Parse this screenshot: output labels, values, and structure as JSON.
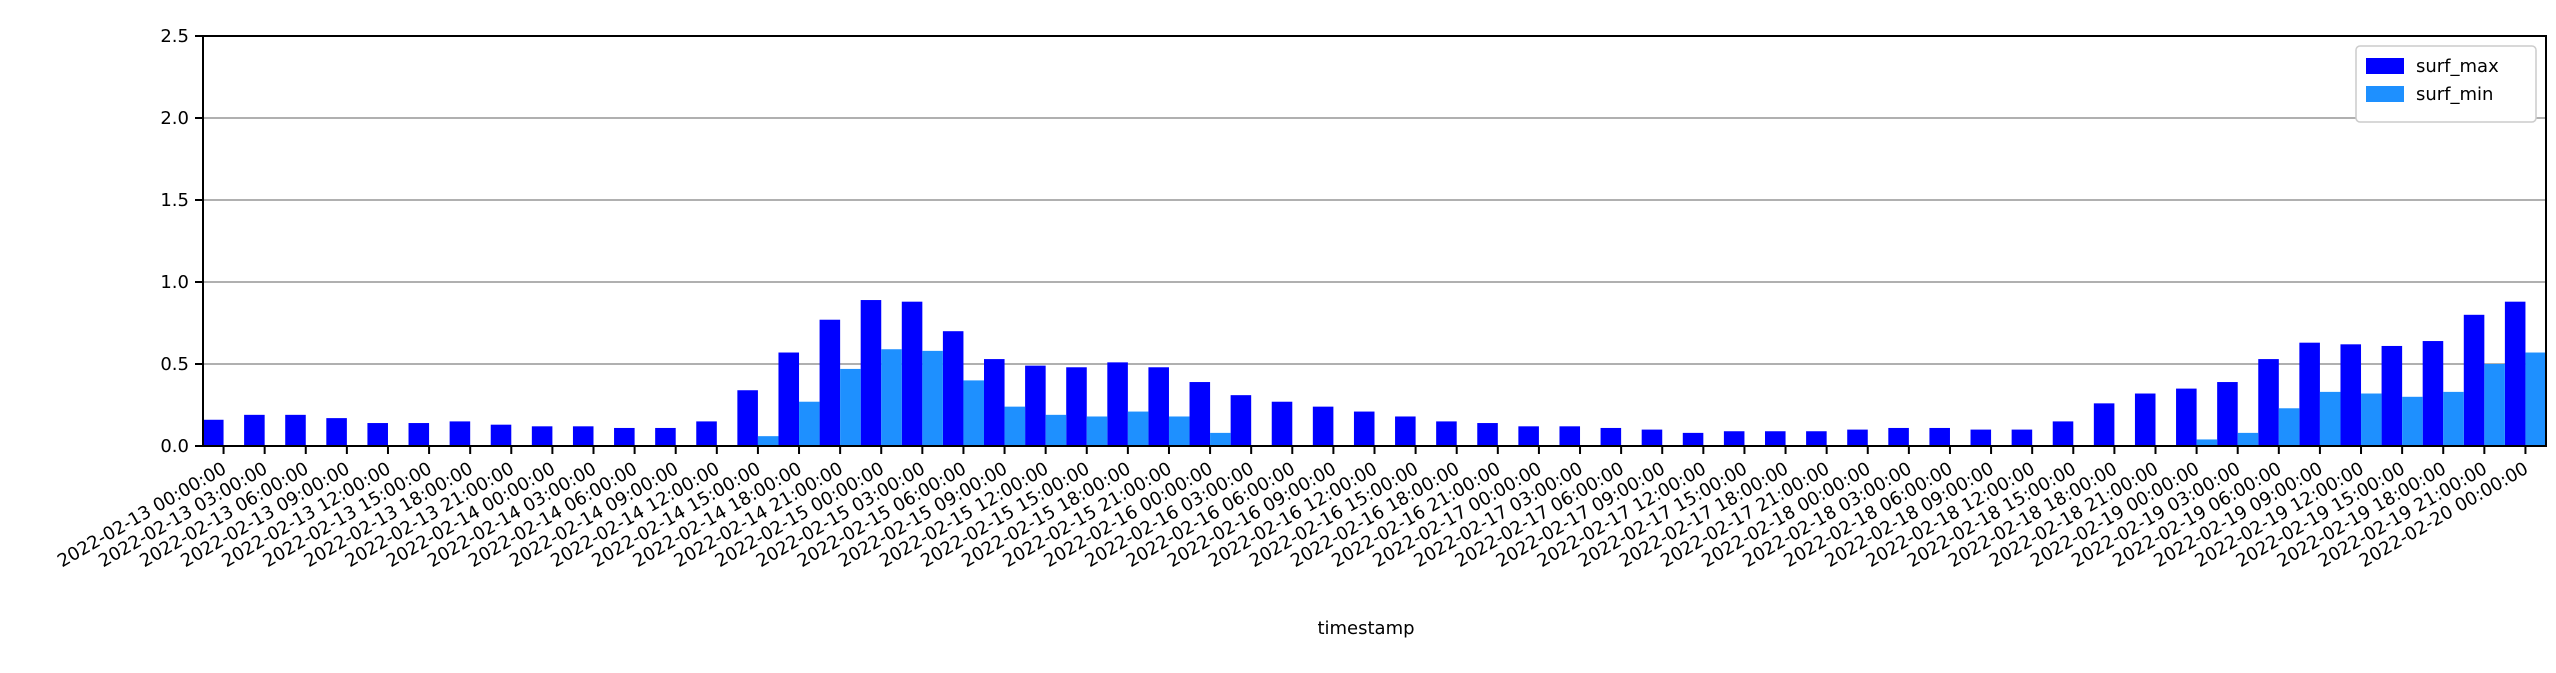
{
  "chart_data": {
    "type": "bar",
    "title": "",
    "xlabel": "timestamp",
    "ylabel": "",
    "ylim": [
      0,
      2.5
    ],
    "yticks": [
      "0.0",
      "0.5",
      "1.0",
      "1.5",
      "2.0",
      "2.5"
    ],
    "grid": "horizontal",
    "legend_position": "top-right",
    "categories": [
      "2022-02-13 00:00:00",
      "2022-02-13 03:00:00",
      "2022-02-13 06:00:00",
      "2022-02-13 09:00:00",
      "2022-02-13 12:00:00",
      "2022-02-13 15:00:00",
      "2022-02-13 18:00:00",
      "2022-02-13 21:00:00",
      "2022-02-14 00:00:00",
      "2022-02-14 03:00:00",
      "2022-02-14 06:00:00",
      "2022-02-14 09:00:00",
      "2022-02-14 12:00:00",
      "2022-02-14 15:00:00",
      "2022-02-14 18:00:00",
      "2022-02-14 21:00:00",
      "2022-02-15 00:00:00",
      "2022-02-15 03:00:00",
      "2022-02-15 06:00:00",
      "2022-02-15 09:00:00",
      "2022-02-15 12:00:00",
      "2022-02-15 15:00:00",
      "2022-02-15 18:00:00",
      "2022-02-15 21:00:00",
      "2022-02-16 00:00:00",
      "2022-02-16 03:00:00",
      "2022-02-16 06:00:00",
      "2022-02-16 09:00:00",
      "2022-02-16 12:00:00",
      "2022-02-16 15:00:00",
      "2022-02-16 18:00:00",
      "2022-02-16 21:00:00",
      "2022-02-17 00:00:00",
      "2022-02-17 03:00:00",
      "2022-02-17 06:00:00",
      "2022-02-17 09:00:00",
      "2022-02-17 12:00:00",
      "2022-02-17 15:00:00",
      "2022-02-17 18:00:00",
      "2022-02-17 21:00:00",
      "2022-02-18 00:00:00",
      "2022-02-18 03:00:00",
      "2022-02-18 06:00:00",
      "2022-02-18 09:00:00",
      "2022-02-18 12:00:00",
      "2022-02-18 15:00:00",
      "2022-02-18 18:00:00",
      "2022-02-18 21:00:00",
      "2022-02-19 00:00:00",
      "2022-02-19 03:00:00",
      "2022-02-19 06:00:00",
      "2022-02-19 09:00:00",
      "2022-02-19 12:00:00",
      "2022-02-19 15:00:00",
      "2022-02-19 18:00:00",
      "2022-02-19 21:00:00",
      "2022-02-20 00:00:00"
    ],
    "series": [
      {
        "name": "surf_max",
        "color": "#0000ff",
        "values": [
          0.16,
          0.19,
          0.19,
          0.17,
          0.14,
          0.14,
          0.15,
          0.13,
          0.12,
          0.12,
          0.11,
          0.11,
          0.15,
          0.34,
          0.57,
          0.77,
          0.89,
          0.88,
          0.7,
          0.53,
          0.49,
          0.48,
          0.51,
          0.48,
          0.39,
          0.31,
          0.27,
          0.24,
          0.21,
          0.18,
          0.15,
          0.14,
          0.12,
          0.12,
          0.11,
          0.1,
          0.08,
          0.09,
          0.09,
          0.09,
          0.1,
          0.11,
          0.11,
          0.1,
          0.1,
          0.15,
          0.26,
          0.32,
          0.35,
          0.39,
          0.53,
          0.63,
          0.62,
          0.61,
          0.64,
          0.8,
          0.88
        ]
      },
      {
        "name": "surf_min",
        "color": "#1e90ff",
        "values": [
          0,
          0,
          0,
          0,
          0,
          0,
          0,
          0,
          0,
          0,
          0,
          0,
          0,
          0.06,
          0.27,
          0.47,
          0.59,
          0.58,
          0.4,
          0.24,
          0.19,
          0.18,
          0.21,
          0.18,
          0.08,
          0,
          0,
          0,
          0,
          0,
          0,
          0,
          0,
          0,
          0,
          0,
          0,
          0,
          0,
          0,
          0,
          0,
          0,
          0,
          0,
          0,
          0,
          0,
          0.04,
          0.08,
          0.23,
          0.33,
          0.32,
          0.3,
          0.33,
          0.5,
          0.57
        ]
      }
    ]
  }
}
